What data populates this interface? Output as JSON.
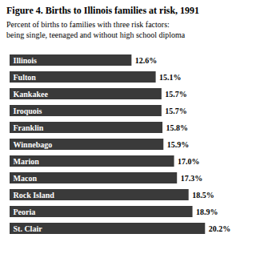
{
  "chart_data": {
    "type": "bar",
    "orientation": "horizontal",
    "title": "Figure 4. Births to Illinois families at risk, 1991",
    "subtitle": "Percent of births to families with three risk factors:\nbeing single, teenaged and without high school diploma",
    "categories": [
      "Illinois",
      "Fulton",
      "Kankakee",
      "Iroquois",
      "Franklin",
      "Winnebago",
      "Marion",
      "Macon",
      "Rock Island",
      "Peoria",
      "St. Clair"
    ],
    "values": [
      12.6,
      15.1,
      15.7,
      15.7,
      15.8,
      15.9,
      17.0,
      17.3,
      18.5,
      18.9,
      20.2
    ],
    "value_labels": [
      "12.6%",
      "15.1%",
      "15.7%",
      "15.7%",
      "15.8%",
      "15.9%",
      "17.0%",
      "17.3%",
      "18.5%",
      "18.9%",
      "20.2%"
    ],
    "data_labels": true,
    "color": "#3a3a3a",
    "xlim": [
      0,
      21.5
    ],
    "tick_labels": false,
    "grid": false
  }
}
